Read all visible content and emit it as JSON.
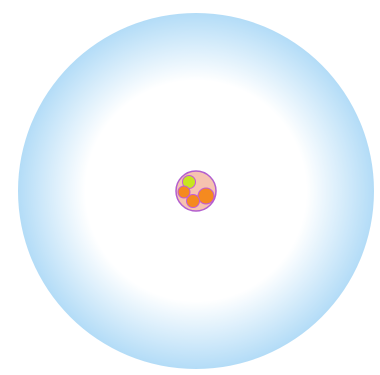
{
  "diagram": {
    "kind": "atom-model",
    "colors": {
      "page_background": "#ffffff",
      "electron_cloud_center": "#ffffff",
      "electron_cloud_edge": "#b3dcf7",
      "nucleus_fill": "#f6c3b0",
      "nucleus_stroke": "#b25fcf",
      "proton": "#f58a1f",
      "neutron": "#c7e61f",
      "particle_stroke": "#c45bd6"
    },
    "particles": [
      {
        "type": "neutron",
        "icon": "neutron-icon"
      },
      {
        "type": "proton",
        "icon": "proton-icon"
      },
      {
        "type": "proton",
        "icon": "proton-icon"
      },
      {
        "type": "proton",
        "icon": "proton-icon"
      }
    ]
  }
}
